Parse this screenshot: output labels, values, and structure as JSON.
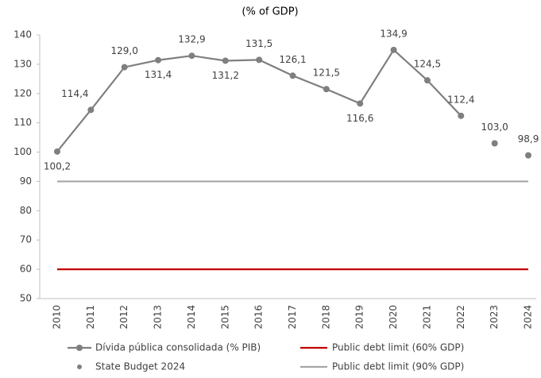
{
  "chart_data": {
    "type": "line",
    "title": "(% of GDP)",
    "categories": [
      "2010",
      "2011",
      "2012",
      "2013",
      "2014",
      "2015",
      "2016",
      "2017",
      "2018",
      "2019",
      "2020",
      "2021",
      "2022",
      "2023",
      "2024"
    ],
    "ylim": [
      50,
      140
    ],
    "yticks": [
      50,
      60,
      70,
      80,
      90,
      100,
      110,
      120,
      130,
      140
    ],
    "series": [
      {
        "name": "Dívida pública consolidada (% PIB)",
        "color": "#7f7f7f",
        "values": [
          100.2,
          114.4,
          129.0,
          131.4,
          132.9,
          131.2,
          131.5,
          126.1,
          121.5,
          116.6,
          134.9,
          124.5,
          112.4,
          null,
          null
        ],
        "value_labels": [
          "100,2",
          "114,4",
          "129,0",
          "131,4",
          "132,9",
          "131,2",
          "131,5",
          "126,1",
          "121,5",
          "116,6",
          "134,9",
          "124,5",
          "112,4",
          null,
          null
        ]
      },
      {
        "name": "State Budget 2024",
        "color": "#7f7f7f",
        "values": [
          null,
          null,
          null,
          null,
          null,
          null,
          null,
          null,
          null,
          null,
          null,
          null,
          null,
          103.0,
          98.9
        ],
        "value_labels": [
          null,
          null,
          null,
          null,
          null,
          null,
          null,
          null,
          null,
          null,
          null,
          null,
          null,
          "103,0",
          "98,9"
        ]
      },
      {
        "name": "Public debt limit (60% GDP)",
        "color": "#c00000",
        "value": 60
      },
      {
        "name": "Public debt limit (90% GDP)",
        "color": "#a6a6a6",
        "value": 90
      }
    ]
  }
}
